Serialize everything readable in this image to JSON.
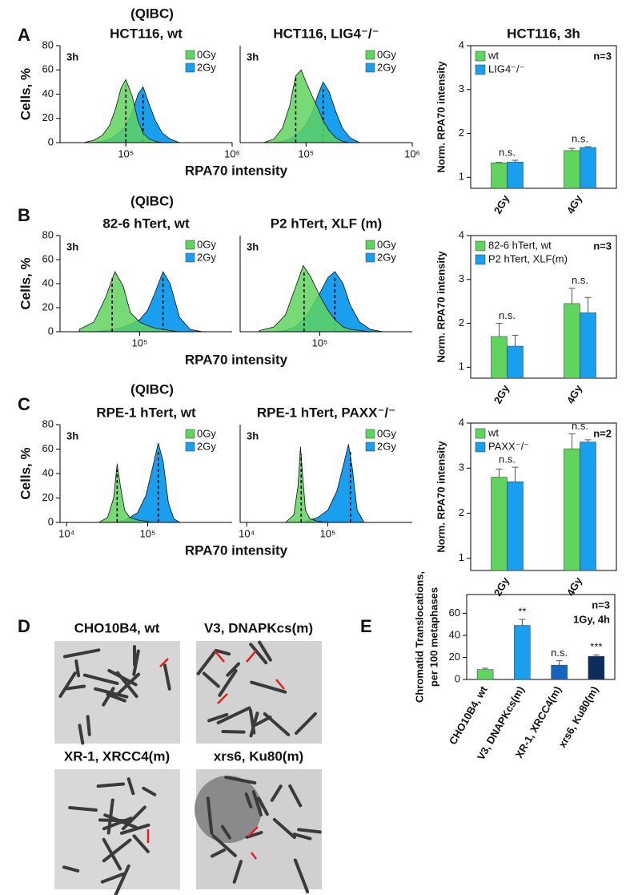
{
  "panel_letters": [
    "A",
    "B",
    "C",
    "D",
    "E"
  ],
  "section_titles": [
    "(QIBC)",
    "(QIBC)",
    "(QIBC)"
  ],
  "micrographs": [
    {
      "label": "CHO10B4, wt"
    },
    {
      "label": "V3, DNAPKcs(m)"
    },
    {
      "label": "XR-1, XRCC4(m)"
    },
    {
      "label": "xrs6, Ku80(m)"
    }
  ],
  "chart_data": [
    {
      "type": "area",
      "title": "HCT116, wt",
      "annotation": "3h",
      "xlabel": "RPA70 intensity",
      "ylabel": "Cells, %",
      "log_x": true,
      "x": [
        40000,
        50000,
        60000,
        70000,
        80000,
        90000,
        100000,
        115000,
        130000,
        145000,
        165000,
        190000,
        220000,
        260000,
        320000
      ],
      "xlim": [
        24000,
        1000000
      ],
      "xticks": [
        {
          "value": 100000,
          "label": "10⁵"
        },
        {
          "value": 1000000,
          "label": "10⁶"
        }
      ],
      "ylim": [
        0,
        80
      ],
      "yticks": [
        0,
        20,
        40,
        60,
        80
      ],
      "series": [
        {
          "name": "0Gy",
          "color": "#5fd45f",
          "median": 100000,
          "values": [
            0,
            2,
            6,
            14,
            28,
            45,
            52,
            38,
            18,
            8,
            3,
            1,
            0,
            0,
            0
          ]
        },
        {
          "name": "2Gy",
          "color": "#1a9fef",
          "median": 145000,
          "values": [
            0,
            0,
            1,
            3,
            6,
            10,
            14,
            25,
            40,
            46,
            32,
            18,
            8,
            3,
            0
          ]
        }
      ]
    },
    {
      "type": "area",
      "title": "HCT116, LIG4⁻/⁻",
      "annotation": "3h",
      "log_x": true,
      "x": [
        40000,
        50000,
        60000,
        70000,
        80000,
        90000,
        100000,
        115000,
        130000,
        145000,
        165000,
        190000,
        220000,
        260000,
        320000
      ],
      "xlim": [
        24000,
        1000000
      ],
      "xticks": [
        {
          "value": 100000,
          "label": "10⁵"
        },
        {
          "value": 1000000,
          "label": "10⁶"
        }
      ],
      "ylim": [
        0,
        80
      ],
      "series": [
        {
          "name": "0Gy",
          "color": "#5fd45f",
          "median": 80000,
          "values": [
            0,
            3,
            12,
            30,
            55,
            60,
            50,
            38,
            28,
            18,
            10,
            4,
            1,
            0,
            0
          ]
        },
        {
          "name": "2Gy",
          "color": "#1a9fef",
          "median": 145000,
          "values": [
            0,
            0,
            1,
            3,
            6,
            10,
            15,
            25,
            40,
            50,
            42,
            26,
            12,
            4,
            0
          ]
        }
      ]
    },
    {
      "type": "bar",
      "title": "HCT116, 3h",
      "ylabel": "Norm. RPA70 intensity",
      "categories": [
        "2Gy",
        "4Gy"
      ],
      "ylim": [
        0.75,
        4
      ],
      "yticks": [
        1,
        2,
        3,
        4
      ],
      "group_labels": [
        "n.s.",
        "n.s."
      ],
      "note": "n=3",
      "series": [
        {
          "name": "wt",
          "color": "#5fd45f",
          "values": [
            1.33,
            1.61
          ],
          "errors": [
            0.01,
            0.05
          ]
        },
        {
          "name": "LIG4⁻/⁻",
          "color": "#1a9fef",
          "values": [
            1.35,
            1.68
          ],
          "errors": [
            0.04,
            0.02
          ]
        }
      ]
    },
    {
      "type": "area",
      "title": "82-6 hTert, wt",
      "annotation": "3h",
      "xlabel": "RPA70 intensity",
      "ylabel": "Cells, %",
      "log_x": true,
      "x": [
        35000,
        45000,
        55000,
        65000,
        75000,
        85000,
        100000,
        115000,
        130000,
        150000,
        170000,
        200000,
        240000,
        300000
      ],
      "xlim": [
        25000,
        500000
      ],
      "xticks": [
        {
          "value": 100000,
          "label": "10⁵"
        }
      ],
      "ylim": [
        0,
        80
      ],
      "yticks": [
        0,
        20,
        40,
        60,
        80
      ],
      "series": [
        {
          "name": "0Gy",
          "color": "#5fd45f",
          "median": 62000,
          "values": [
            2,
            8,
            28,
            50,
            38,
            16,
            8,
            5,
            3,
            2,
            1,
            0,
            0,
            0
          ]
        },
        {
          "name": "2Gy",
          "color": "#1a9fef",
          "median": 150000,
          "values": [
            0,
            0,
            1,
            2,
            4,
            6,
            10,
            18,
            32,
            50,
            40,
            12,
            2,
            0
          ]
        }
      ]
    },
    {
      "type": "area",
      "title": "P2 hTert, XLF (m)",
      "annotation": "3h",
      "log_x": true,
      "x": [
        35000,
        45000,
        55000,
        65000,
        75000,
        85000,
        100000,
        115000,
        130000,
        150000,
        170000,
        200000,
        240000,
        300000
      ],
      "xlim": [
        25000,
        500000
      ],
      "xticks": [
        {
          "value": 100000,
          "label": "10⁵"
        }
      ],
      "ylim": [
        0,
        80
      ],
      "series": [
        {
          "name": "0Gy",
          "color": "#5fd45f",
          "median": 76000,
          "values": [
            1,
            4,
            14,
            36,
            55,
            46,
            30,
            18,
            10,
            4,
            2,
            1,
            0,
            0
          ]
        },
        {
          "name": "2Gy",
          "color": "#1a9fef",
          "median": 130000,
          "values": [
            0,
            0,
            1,
            4,
            10,
            18,
            32,
            45,
            50,
            40,
            22,
            8,
            2,
            0
          ]
        }
      ]
    },
    {
      "type": "bar",
      "ylabel": "Norm. RPA70 intensity",
      "categories": [
        "2Gy",
        "4Gy"
      ],
      "ylim": [
        0.75,
        4
      ],
      "yticks": [
        1,
        2,
        3,
        4
      ],
      "group_labels": [
        "n.s.",
        "n.s."
      ],
      "note": "n=3",
      "series": [
        {
          "name": "82-6 hTert, wt",
          "color": "#5fd45f",
          "values": [
            1.7,
            2.45
          ],
          "errors": [
            0.3,
            0.35
          ]
        },
        {
          "name": "P2 hTert, XLF(m)",
          "color": "#1a9fef",
          "values": [
            1.48,
            2.24
          ],
          "errors": [
            0.25,
            0.35
          ]
        }
      ]
    },
    {
      "type": "area",
      "title": "RPE-1 hTert, wt",
      "annotation": "3h",
      "xlabel": "RPA70 intensity",
      "ylabel": "Cells, %",
      "log_x": true,
      "x": [
        25000,
        32000,
        38000,
        42000,
        46000,
        52000,
        60000,
        75000,
        95000,
        115000,
        135000,
        155000,
        180000,
        210000,
        250000
      ],
      "xlim": [
        8300,
        1100000
      ],
      "xticks": [
        {
          "value": 10000,
          "label": "10⁴"
        },
        {
          "value": 100000,
          "label": "10⁵"
        }
      ],
      "ylim": [
        0,
        80
      ],
      "yticks": [
        0,
        20,
        40,
        60,
        80
      ],
      "series": [
        {
          "name": "0Gy",
          "color": "#5fd45f",
          "median": 42000,
          "values": [
            0,
            4,
            20,
            48,
            30,
            10,
            4,
            2,
            1,
            0,
            0,
            0,
            0,
            0,
            0
          ]
        },
        {
          "name": "2Gy",
          "color": "#1a9fef",
          "median": 135000,
          "values": [
            0,
            0,
            0,
            0,
            1,
            2,
            4,
            8,
            22,
            45,
            65,
            50,
            16,
            3,
            0
          ]
        }
      ]
    },
    {
      "type": "area",
      "title": "RPE-1 hTert, PAXX⁻/⁻",
      "annotation": "3h",
      "log_x": true,
      "x": [
        30000,
        38000,
        43000,
        46000,
        49000,
        53000,
        60000,
        75000,
        100000,
        130000,
        160000,
        180000,
        200000,
        230000,
        280000
      ],
      "xlim": [
        8300,
        1100000
      ],
      "xticks": [
        {
          "value": 10000,
          "label": "10⁴"
        },
        {
          "value": 100000,
          "label": "10⁵"
        }
      ],
      "ylim": [
        0,
        80
      ],
      "series": [
        {
          "name": "0Gy",
          "color": "#5fd45f",
          "median": 47000,
          "values": [
            0,
            6,
            30,
            62,
            38,
            10,
            3,
            1,
            0,
            0,
            0,
            0,
            0,
            0,
            0
          ]
        },
        {
          "name": "2Gy",
          "color": "#1a9fef",
          "median": 190000,
          "values": [
            0,
            0,
            0,
            0,
            0,
            1,
            2,
            4,
            10,
            26,
            50,
            64,
            45,
            10,
            0
          ]
        }
      ]
    },
    {
      "type": "bar",
      "ylabel": "Norm. RPA70 intensity",
      "categories": [
        "2Gy",
        "4Gy"
      ],
      "ylim": [
        0.73,
        4
      ],
      "yticks": [
        1,
        2,
        3,
        4
      ],
      "group_labels": [
        "n.s.",
        "n.s."
      ],
      "note": "n=2",
      "series": [
        {
          "name": "wt",
          "color": "#5fd45f",
          "values": [
            2.8,
            3.43
          ],
          "errors": [
            0.18,
            0.33
          ]
        },
        {
          "name": "PAXX⁻/⁻",
          "color": "#1a9fef",
          "values": [
            2.7,
            3.58
          ],
          "errors": [
            0.32,
            0.05
          ]
        }
      ]
    },
    {
      "type": "bar",
      "ylabel_lines": [
        "Chromatid Translocations,",
        "per 100 metaphases"
      ],
      "categories": [
        "CHO10B4, wt",
        "V3, DNAPKcs(m)",
        "XR-1, XRCC4(m)",
        "xrs6, Ku80(m)"
      ],
      "ylim": [
        0,
        77
      ],
      "yticks": [
        0,
        20,
        40,
        60
      ],
      "group_labels": [
        null,
        "**",
        "n.s.",
        "***"
      ],
      "notes": [
        "n=3",
        "1Gy, 4h"
      ],
      "series": [
        {
          "values": [
            9,
            49,
            13,
            21
          ],
          "errors": [
            1.2,
            5.5,
            4,
            1.3
          ],
          "colors": [
            "#5fd45f",
            "#1a9fef",
            "#1565c0",
            "#0b2e5e"
          ]
        }
      ]
    }
  ]
}
